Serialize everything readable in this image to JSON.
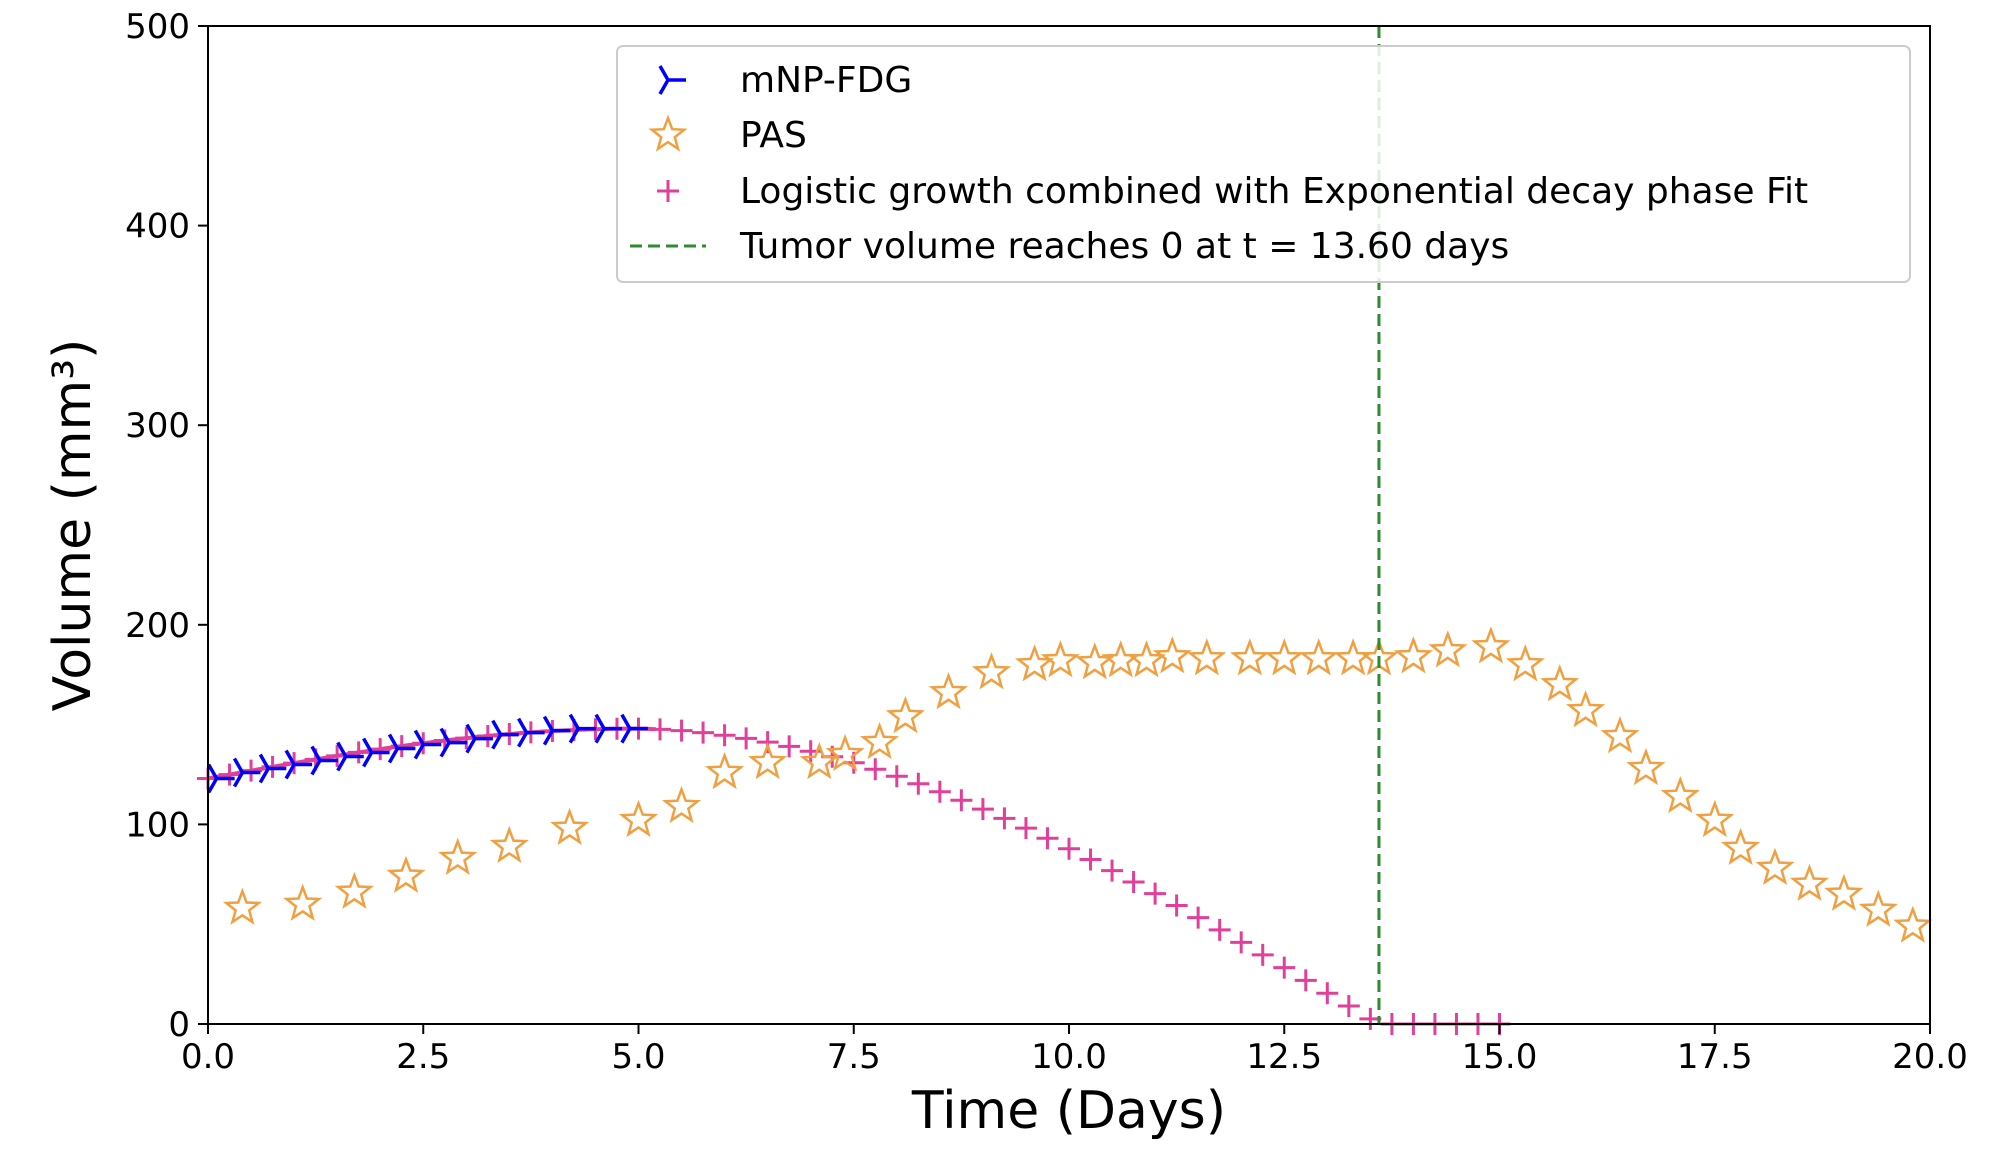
{
  "chart_data": {
    "type": "scatter",
    "title": "",
    "xlabel": "Time (Days)",
    "ylabel": "Volume (mm³)",
    "xlim": [
      0,
      20
    ],
    "ylim": [
      0,
      500
    ],
    "xticks": [
      0,
      2.5,
      5,
      7.5,
      10,
      12.5,
      15,
      17.5,
      20
    ],
    "xtick_labels": [
      "0.0",
      "2.5",
      "5.0",
      "7.5",
      "10.0",
      "12.5",
      "15.0",
      "17.5",
      "20.0"
    ],
    "yticks": [
      0,
      100,
      200,
      300,
      400,
      500
    ],
    "ytick_labels": [
      "0",
      "100",
      "200",
      "300",
      "400",
      "500"
    ],
    "grid": false,
    "legend_position": "top-right",
    "series": [
      {
        "name": "mNP-FDG",
        "marker": "tri-right",
        "color": "#0000ff",
        "x": [
          0.1,
          0.4,
          0.7,
          1.0,
          1.3,
          1.6,
          1.9,
          2.2,
          2.5,
          2.8,
          3.1,
          3.4,
          3.7,
          4.0,
          4.3,
          4.6,
          4.9
        ],
        "y": [
          123,
          126,
          128,
          130,
          132,
          134,
          136,
          138,
          140,
          141,
          143,
          145,
          146,
          147,
          148,
          148,
          148
        ]
      },
      {
        "name": "PAS",
        "marker": "star-open",
        "color": "#f0a040",
        "x": [
          0.4,
          1.1,
          1.7,
          2.3,
          2.9,
          3.5,
          4.2,
          5.0,
          5.5,
          6.0,
          6.5,
          7.1,
          7.4,
          7.8,
          8.1,
          8.6,
          9.1,
          9.6,
          9.9,
          10.3,
          10.6,
          10.9,
          11.2,
          11.6,
          12.1,
          12.5,
          12.9,
          13.3,
          13.6,
          14.0,
          14.4,
          14.9,
          15.3,
          15.7,
          16.0,
          16.4,
          16.7,
          17.1,
          17.5,
          17.8,
          18.2,
          18.6,
          19.0,
          19.4,
          19.8
        ],
        "y": [
          58,
          60,
          66,
          74,
          83,
          89,
          98,
          102,
          109,
          126,
          131,
          131,
          135,
          141,
          154,
          166,
          176,
          180,
          182,
          181,
          182,
          182,
          184,
          183,
          183,
          183,
          183,
          183,
          183,
          184,
          187,
          189,
          180,
          170,
          157,
          144,
          128,
          114,
          102,
          88,
          78,
          70,
          65,
          57,
          49
        ]
      },
      {
        "name": "Logistic growth combined with  Exponential decay phase Fit",
        "marker": "plus",
        "color": "#e0409a"
      },
      {
        "name": "Tumor volume reaches 0 at t = 13.60 days",
        "marker": "dashed-vertical-line",
        "color": "#2e8b2e",
        "x_value": 13.6
      }
    ]
  }
}
